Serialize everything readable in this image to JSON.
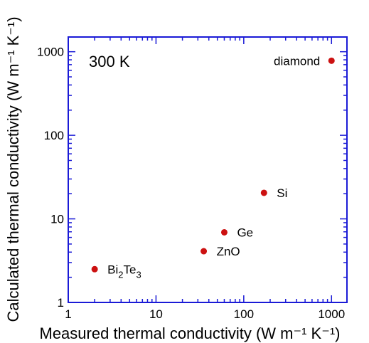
{
  "chart_data": {
    "type": "scatter",
    "title": "",
    "annotation": "300 K",
    "xlabel": "Measured thermal conductivity (W m⁻¹ K⁻¹)",
    "ylabel": "Calculated thermal conductivity (W m⁻¹ K⁻¹)",
    "xscale": "log",
    "yscale": "log",
    "xlim": [
      1,
      1500
    ],
    "ylim": [
      1,
      1500
    ],
    "xticks": [
      1,
      10,
      100,
      1000
    ],
    "yticks": [
      1,
      10,
      100,
      1000
    ],
    "xtick_labels": [
      "1",
      "10",
      "100",
      "1000"
    ],
    "ytick_labels": [
      "1",
      "10",
      "100",
      "1000"
    ],
    "grid": false,
    "marker_color": "#cc1111",
    "frame_color": "#1a1ad6",
    "points": [
      {
        "label": "Bi2Te3",
        "label_parts": [
          "Bi",
          "2",
          "Te",
          "3"
        ],
        "x": 2.0,
        "y": 2.5,
        "label_side": "right"
      },
      {
        "label": "ZnO",
        "x": 35,
        "y": 4.1,
        "label_side": "right"
      },
      {
        "label": "Ge",
        "x": 60,
        "y": 6.9,
        "label_side": "right"
      },
      {
        "label": "Si",
        "x": 170,
        "y": 20.5,
        "label_side": "right"
      },
      {
        "label": "diamond",
        "x": 1000,
        "y": 780,
        "label_side": "left"
      }
    ]
  }
}
